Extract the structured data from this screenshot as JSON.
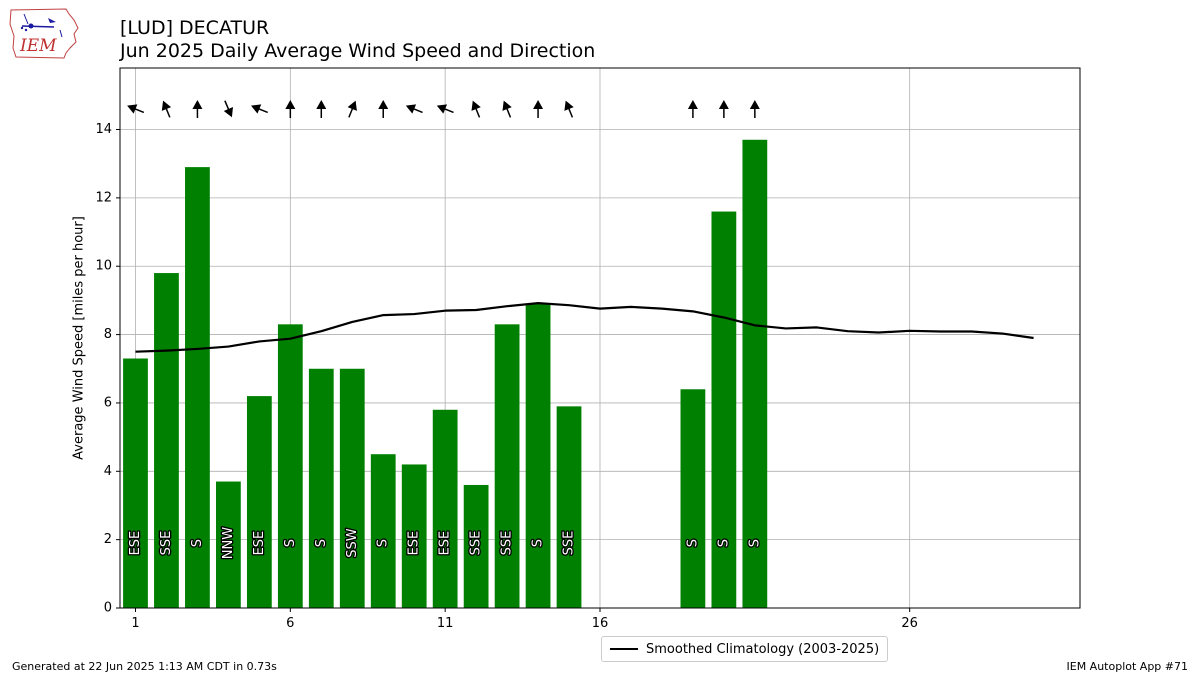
{
  "title": {
    "line1": "[LUD] DECATUR",
    "line2": "Jun 2025 Daily Average Wind Speed and Direction"
  },
  "logo": {
    "text": "IEM",
    "icon": "iowa-map-weather-station-icon"
  },
  "footer": {
    "left": "Generated at 22 Jun 2025 1:13 AM CDT in 0.73s",
    "right": "IEM Autoplot App #71"
  },
  "legend": {
    "label": "Smoothed Climatology (2003-2025)"
  },
  "colors": {
    "bar": "#008000",
    "climatology": "#000000",
    "grid": "#b0b0b0"
  },
  "chart_data": {
    "type": "bar",
    "ylabel": "Average Wind Speed [miles per hour]",
    "xlabel": "",
    "xlim": [
      0.5,
      31.5
    ],
    "ylim": [
      0,
      15.8
    ],
    "xticks": [
      1,
      6,
      11,
      16,
      26
    ],
    "yticks": [
      0,
      2,
      4,
      6,
      8,
      10,
      12,
      14
    ],
    "grid": true,
    "legend_position": "bottom-center",
    "series": [
      {
        "type": "bar",
        "days": [
          1,
          2,
          3,
          4,
          5,
          6,
          7,
          8,
          9,
          10,
          11,
          12,
          13,
          14,
          15,
          19,
          20,
          21
        ],
        "values": [
          7.3,
          9.8,
          12.9,
          3.7,
          6.2,
          8.3,
          7.0,
          7.0,
          4.5,
          4.2,
          5.8,
          3.6,
          8.3,
          8.9,
          5.9,
          6.4,
          11.6,
          13.7
        ],
        "direction_labels": [
          "ESE",
          "SSE",
          "S",
          "NNW",
          "ESE",
          "S",
          "S",
          "SSW",
          "S",
          "ESE",
          "ESE",
          "SSE",
          "SSE",
          "S",
          "SSE",
          "S",
          "S",
          "S"
        ],
        "direction_degrees": [
          112,
          158,
          180,
          337,
          112,
          180,
          180,
          202,
          180,
          112,
          112,
          158,
          158,
          180,
          158,
          180,
          180,
          180
        ]
      },
      {
        "type": "line",
        "name": "Smoothed Climatology (2003-2025)",
        "x": [
          1,
          2,
          3,
          4,
          5,
          6,
          7,
          8,
          9,
          10,
          11,
          12,
          13,
          14,
          15,
          16,
          17,
          18,
          19,
          20,
          21,
          22,
          23,
          24,
          25,
          26,
          27,
          28,
          29,
          30
        ],
        "y": [
          7.5,
          7.53,
          7.58,
          7.65,
          7.8,
          7.88,
          8.1,
          8.37,
          8.57,
          8.6,
          8.7,
          8.72,
          8.83,
          8.92,
          8.86,
          8.76,
          8.81,
          8.76,
          8.68,
          8.5,
          8.27,
          8.18,
          8.21,
          8.1,
          8.06,
          8.11,
          8.09,
          8.09,
          8.03,
          7.9
        ]
      }
    ]
  }
}
